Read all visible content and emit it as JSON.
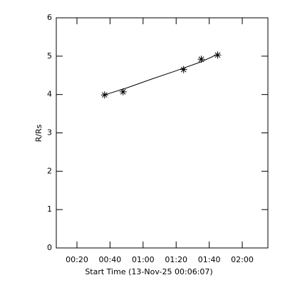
{
  "chart_data": {
    "type": "line",
    "x_label": "Start Time (13-Nov-25 00:06:07)",
    "y_label": "R/Rs",
    "series": [
      {
        "x": [
          36.7,
          47.9,
          84.5,
          95.2,
          105.1
        ],
        "values": [
          3.99,
          4.07,
          4.65,
          4.92,
          5.03
        ],
        "marker": "asterisk",
        "color": "#000000"
      },
      {
        "x": [
          36.7,
          50,
          65,
          80,
          95,
          105.1
        ],
        "values": [
          3.99,
          4.17,
          4.4,
          4.62,
          4.85,
          5.05
        ],
        "marker": "none",
        "color": "#000000"
      }
    ],
    "xlim": [
      7.5,
      135.5
    ],
    "xticks": [
      {
        "value": 20,
        "label": "00:20"
      },
      {
        "value": 40,
        "label": "00:40"
      },
      {
        "value": 60,
        "label": "01:00"
      },
      {
        "value": 80,
        "label": "01:20"
      },
      {
        "value": 100,
        "label": "01:40"
      },
      {
        "value": 120,
        "label": "02:00"
      }
    ],
    "ylim": [
      0,
      6
    ],
    "yticks": [
      0,
      1,
      2,
      3,
      4,
      5,
      6
    ],
    "grid": false
  }
}
